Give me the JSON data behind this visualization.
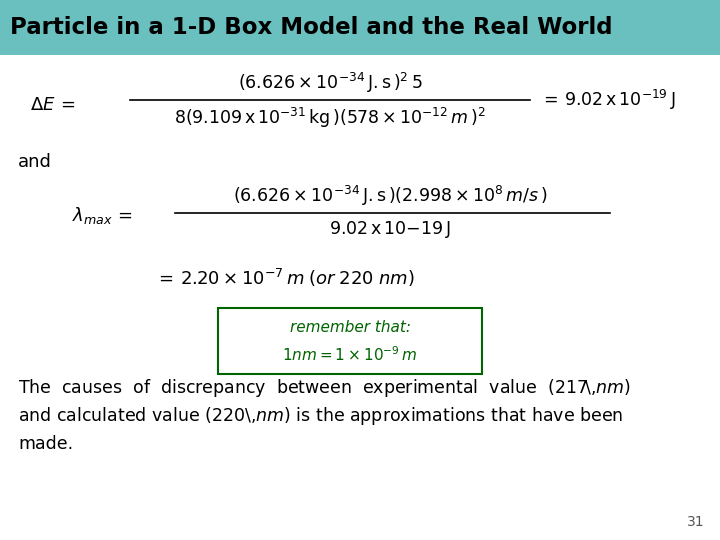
{
  "title": "Particle in a 1-D Box Model and the Real World",
  "title_bg_top": "#a8d8d8",
  "title_bg_bot": "#5aacac",
  "title_color": "#000000",
  "bg_color": "#ffffff",
  "page_number": "31",
  "box_color": "#006400",
  "figsize": [
    7.2,
    5.4
  ],
  "dpi": 100
}
